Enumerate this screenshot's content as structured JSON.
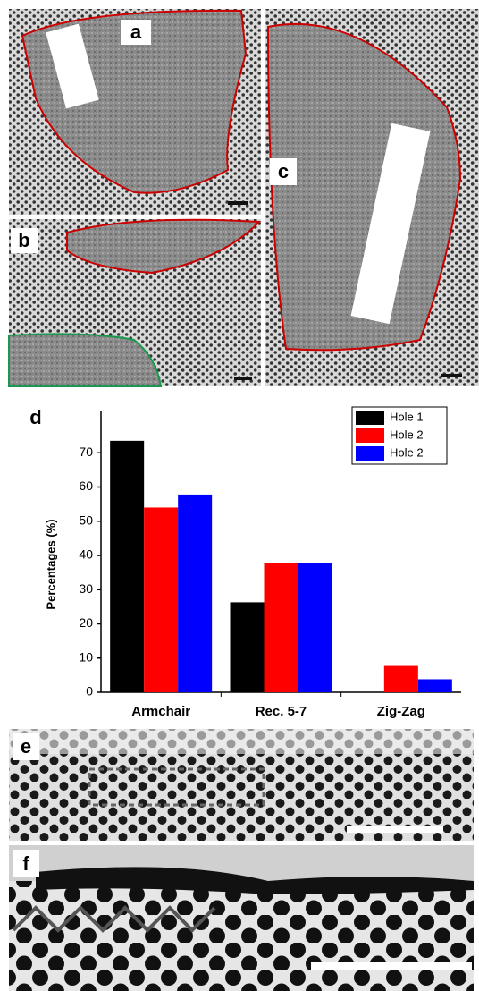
{
  "panel_labels": {
    "a": "a",
    "b": "b",
    "c": "c",
    "d": "d",
    "e": "e",
    "f": "f"
  },
  "chart_data": {
    "type": "bar",
    "ylabel": "Percentages (%)",
    "categories": [
      "Armchair",
      "Rec. 5-7",
      "Zig-Zag"
    ],
    "series": [
      {
        "name": "Hole 1",
        "color": "#000000",
        "values": [
          73.5,
          26.3,
          null
        ]
      },
      {
        "name": "Hole 2",
        "color": "#ff0000",
        "values": [
          54,
          37.8,
          7.7
        ]
      },
      {
        "name": "Hole 2",
        "color": "#0000ff",
        "values": [
          57.8,
          37.8,
          3.8
        ]
      }
    ],
    "ylim": [
      0,
      80
    ],
    "yticks": [
      0,
      10,
      20,
      30,
      40,
      50,
      60,
      70
    ],
    "legend": "top-right"
  }
}
